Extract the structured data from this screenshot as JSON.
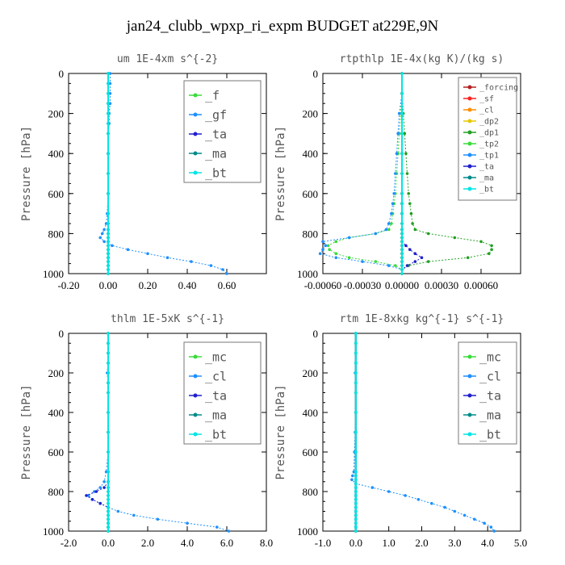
{
  "figure_title": "jan24_clubb_wpxp_ri_expm  BUDGET at229E,9N",
  "chart_data": [
    {
      "type": "line",
      "title": "um  1E-4xm s^{-2}",
      "ylabel": "Pressure [hPa]",
      "xlim": [
        -0.2,
        0.8
      ],
      "ylim": [
        1000,
        0
      ],
      "xticks": [
        "-0.20",
        "0.00",
        "0.20",
        "0.40",
        "0.60"
      ],
      "yticks": [
        "0",
        "200",
        "400",
        "600",
        "800",
        "1000"
      ],
      "y": [
        0,
        50,
        100,
        150,
        200,
        250,
        300,
        400,
        500,
        600,
        700,
        750,
        780,
        800,
        820,
        840,
        860,
        880,
        900,
        920,
        940,
        960,
        980,
        1000
      ],
      "series": [
        {
          "name": "_f",
          "color": "#3adb3a",
          "values": [
            0,
            0,
            0,
            0,
            0,
            0,
            0,
            0,
            0,
            0,
            0,
            0,
            0,
            0,
            0,
            0,
            0,
            0,
            0,
            0,
            0,
            0,
            0,
            0
          ]
        },
        {
          "name": "_gf",
          "color": "#1e90ff",
          "values": [
            0.01,
            0.01,
            0.01,
            0.01,
            0.005,
            0.005,
            0,
            0,
            0,
            0,
            -0.005,
            -0.01,
            -0.02,
            -0.03,
            -0.04,
            -0.02,
            0.02,
            0.1,
            0.2,
            0.3,
            0.42,
            0.52,
            0.58,
            0.6
          ]
        },
        {
          "name": "_ta",
          "color": "#2020cc",
          "values": [
            0,
            0,
            0,
            0,
            0,
            0,
            0,
            0,
            0,
            0,
            0,
            0,
            0,
            0,
            0,
            0,
            0,
            0,
            0,
            0,
            0,
            0,
            0,
            0
          ]
        },
        {
          "name": "_ma",
          "color": "#008b8b",
          "values": [
            0,
            0,
            0,
            0,
            0,
            0,
            0,
            0,
            0,
            0,
            0,
            0,
            0,
            0,
            0,
            0,
            0,
            0,
            0,
            0,
            0,
            0,
            0,
            0
          ]
        },
        {
          "name": "_bt",
          "color": "#00e5e5",
          "values": [
            0,
            0,
            0,
            0,
            0,
            0,
            0,
            0,
            0,
            0,
            0,
            0,
            0,
            0,
            0,
            0,
            0,
            0,
            0,
            0,
            0,
            0,
            0,
            0
          ]
        }
      ],
      "legend": "top-right"
    },
    {
      "type": "line",
      "title": "rtpthlp  1E-4x(kg K)/(kg s)",
      "ylabel": "Pressure [hPa]",
      "xlim": [
        -0.0006,
        0.0009
      ],
      "ylim": [
        1000,
        0
      ],
      "xticks": [
        "-0.00060",
        "-0.00030",
        "0.00000",
        "0.00030",
        "0.00060"
      ],
      "yticks": [
        "0",
        "200",
        "400",
        "600",
        "800",
        "1000"
      ],
      "y": [
        0,
        100,
        200,
        300,
        400,
        500,
        600,
        650,
        700,
        750,
        780,
        800,
        820,
        840,
        860,
        880,
        900,
        920,
        940,
        960,
        980,
        1000
      ],
      "series": [
        {
          "name": "_forcing",
          "color": "#b22222",
          "values": [
            0,
            0,
            0,
            0,
            0,
            0,
            0,
            0,
            0,
            0,
            0,
            0,
            0,
            0,
            0,
            0,
            0,
            0,
            0,
            0,
            0,
            0
          ]
        },
        {
          "name": "_sf",
          "color": "#ff2020",
          "values": [
            0,
            0,
            0,
            0,
            0,
            0,
            0,
            0,
            0,
            0,
            0,
            0,
            0,
            0,
            0,
            0,
            0,
            0,
            0,
            0,
            0,
            0
          ]
        },
        {
          "name": "_cl",
          "color": "#ff8c00",
          "values": [
            0,
            0,
            0,
            0,
            0,
            0,
            0,
            0,
            0,
            0,
            0,
            0,
            0,
            0,
            0,
            0,
            0,
            0,
            0,
            0,
            0,
            0
          ]
        },
        {
          "name": "_dp2",
          "color": "#e6c800",
          "values": [
            0,
            0,
            0,
            0,
            0,
            0,
            0,
            0,
            0,
            0,
            0,
            0,
            0,
            0,
            0,
            0,
            0,
            0,
            0,
            0,
            0,
            0
          ]
        },
        {
          "name": "_dp1",
          "color": "#22a022",
          "values": [
            0,
            0,
            1e-05,
            2e-05,
            3e-05,
            4e-05,
            5e-05,
            6e-05,
            7e-05,
            8e-05,
            0.0001,
            0.0002,
            0.0004,
            0.0006,
            0.00068,
            0.00068,
            0.00066,
            0.0005,
            0.0002,
            5e-05,
            0,
            0
          ]
        },
        {
          "name": "_tp2",
          "color": "#3adb3a",
          "values": [
            0,
            0,
            -1e-05,
            -2e-05,
            -3e-05,
            -4e-05,
            -5e-05,
            -6e-05,
            -7e-05,
            -8e-05,
            -0.0001,
            -0.0002,
            -0.0004,
            -0.0005,
            -0.00056,
            -0.00055,
            -0.0005,
            -0.0004,
            -0.0002,
            -5e-05,
            0,
            0
          ]
        },
        {
          "name": "_tp1",
          "color": "#1e90ff",
          "values": [
            0,
            0,
            -2e-05,
            -3e-05,
            -4e-05,
            -5e-05,
            -6e-05,
            -7e-05,
            -8e-05,
            -0.0001,
            -0.00012,
            -0.0002,
            -0.0004,
            -0.0006,
            -0.00058,
            -0.0006,
            -0.00062,
            -0.0005,
            -0.0003,
            -0.0001,
            0,
            0
          ]
        },
        {
          "name": "_ta",
          "color": "#2020cc",
          "values": [
            0,
            0,
            0,
            0,
            0,
            0,
            0,
            0,
            0,
            0,
            0,
            0,
            0,
            0,
            3e-05,
            6e-05,
            0.0001,
            0.00015,
            0.0001,
            4e-05,
            0,
            0
          ]
        },
        {
          "name": "_ma",
          "color": "#008b8b",
          "values": [
            0,
            0,
            0,
            0,
            0,
            0,
            0,
            0,
            0,
            0,
            0,
            0,
            0,
            0,
            0,
            0,
            0,
            0,
            0,
            0,
            0,
            0
          ]
        },
        {
          "name": "_bt",
          "color": "#00e5e5",
          "values": [
            0,
            0,
            0,
            0,
            0,
            0,
            0,
            0,
            0,
            0,
            0,
            0,
            0,
            0,
            0,
            0,
            0,
            0,
            0,
            0,
            0,
            0
          ]
        }
      ],
      "legend": "top-right"
    },
    {
      "type": "line",
      "title": "thlm  1E-5xK s^{-1}",
      "ylabel": "Pressure [hPa]",
      "xlim": [
        -2.0,
        8.0
      ],
      "ylim": [
        1000,
        0
      ],
      "xticks": [
        "-2.0",
        "0.0",
        "2.0",
        "4.0",
        "6.0",
        "8.0"
      ],
      "yticks": [
        "0",
        "200",
        "400",
        "600",
        "800",
        "1000"
      ],
      "y": [
        0,
        50,
        100,
        150,
        200,
        250,
        300,
        400,
        500,
        600,
        700,
        750,
        780,
        800,
        820,
        840,
        860,
        880,
        900,
        920,
        940,
        960,
        980,
        1000
      ],
      "series": [
        {
          "name": "_mc",
          "color": "#3adb3a",
          "values": [
            0,
            0,
            0,
            0,
            0,
            0,
            0,
            0,
            0,
            0,
            0,
            0,
            0,
            0,
            0,
            0,
            0,
            0,
            0,
            0,
            0,
            0,
            0,
            0
          ]
        },
        {
          "name": "_cl",
          "color": "#1e90ff",
          "values": [
            0,
            0,
            0,
            0,
            -0.05,
            0,
            0,
            0,
            0,
            0,
            -0.1,
            -0.2,
            -0.4,
            -0.7,
            -1.0,
            -0.8,
            -0.4,
            0,
            0.5,
            1.3,
            2.5,
            4.0,
            5.5,
            6.1
          ]
        },
        {
          "name": "_ta",
          "color": "#2020cc",
          "values": [
            0,
            0,
            0,
            0,
            0,
            0,
            0,
            0,
            0,
            0,
            0,
            0,
            -0.2,
            -0.6,
            -1.1,
            -0.8,
            -0.4,
            0,
            0,
            0,
            0,
            0,
            0,
            0
          ]
        },
        {
          "name": "_ma",
          "color": "#008b8b",
          "values": [
            0,
            0,
            0,
            0,
            0,
            0,
            0,
            0,
            0,
            0,
            0,
            0,
            0,
            0,
            0,
            0,
            0,
            0,
            0,
            0,
            0,
            0,
            0,
            0
          ]
        },
        {
          "name": "_bt",
          "color": "#00e5e5",
          "values": [
            0,
            0,
            0,
            0,
            0,
            0,
            0,
            0,
            0,
            0,
            0,
            0,
            0,
            0,
            0,
            0,
            0,
            0,
            0,
            0,
            0,
            0,
            0,
            0
          ]
        }
      ],
      "legend": "top-right"
    },
    {
      "type": "line",
      "title": "rtm  1E-8xkg kg^{-1} s^{-1}",
      "ylabel": "Pressure [hPa]",
      "xlim": [
        -1.0,
        5.0
      ],
      "ylim": [
        1000,
        0
      ],
      "xticks": [
        "-1.0",
        "0.0",
        "1.0",
        "2.0",
        "3.0",
        "4.0",
        "5.0"
      ],
      "yticks": [
        "0",
        "200",
        "400",
        "600",
        "800",
        "1000"
      ],
      "y": [
        0,
        50,
        100,
        150,
        200,
        250,
        300,
        400,
        500,
        600,
        700,
        720,
        740,
        760,
        780,
        800,
        820,
        840,
        860,
        880,
        900,
        920,
        940,
        960,
        980,
        1000
      ],
      "series": [
        {
          "name": "_mc",
          "color": "#3adb3a",
          "values": [
            0,
            0,
            0,
            0,
            0,
            0,
            0,
            0,
            0,
            0,
            0,
            0,
            0,
            0,
            0,
            0,
            0,
            0,
            0,
            0,
            0,
            0,
            0,
            0,
            0,
            0
          ]
        },
        {
          "name": "_cl",
          "color": "#1e90ff",
          "values": [
            0,
            0,
            0,
            0,
            -0.02,
            0,
            0,
            0,
            -0.02,
            -0.04,
            -0.06,
            -0.1,
            -0.12,
            0,
            0.5,
            1.0,
            1.5,
            1.9,
            2.3,
            2.7,
            3.0,
            3.3,
            3.6,
            3.9,
            4.1,
            4.2
          ]
        },
        {
          "name": "_ta",
          "color": "#2020cc",
          "values": [
            0,
            0,
            0,
            0,
            0,
            0,
            0,
            0,
            0,
            0,
            0,
            0,
            0,
            0,
            0,
            0,
            0,
            0,
            0,
            0,
            0,
            0,
            0,
            0,
            0,
            0
          ]
        },
        {
          "name": "_ma",
          "color": "#008b8b",
          "values": [
            0,
            0,
            0,
            0,
            0,
            0,
            0,
            0,
            0,
            0,
            0,
            0,
            0,
            0,
            0,
            0,
            0,
            0,
            0,
            0,
            0,
            0,
            0,
            0,
            0,
            0
          ]
        },
        {
          "name": "_bt",
          "color": "#00e5e5",
          "values": [
            0,
            0,
            0,
            0,
            0,
            0,
            0,
            0,
            0,
            0,
            0,
            0,
            0,
            0,
            0,
            0,
            0,
            0,
            0,
            0,
            0,
            0,
            0,
            0,
            0,
            0
          ]
        }
      ],
      "legend": "top-right"
    }
  ]
}
